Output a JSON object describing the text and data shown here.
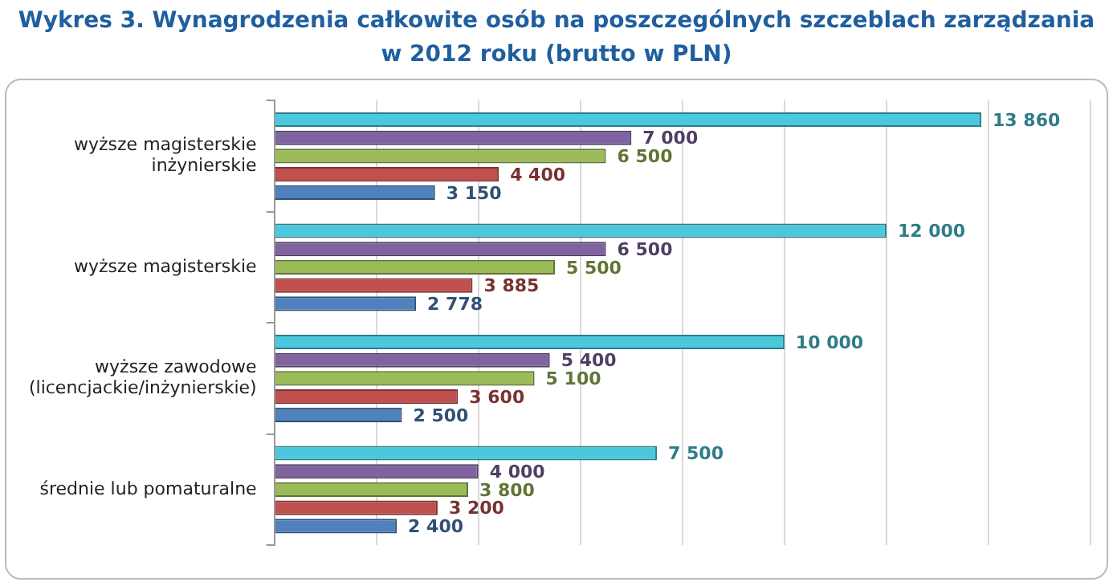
{
  "chart_data": {
    "type": "bar",
    "orientation": "horizontal",
    "title": "Wykres 3. Wynagrodzenia całkowite osób na poszczególnych szczeblach zarządzania\nw 2012 roku (brutto w PLN)",
    "categories": [
      "wyższe magisterskie inżynierskie",
      "wyższe magisterskie",
      "wyższe zawodowe (licencjackie/inżynierskie)",
      "średnie lub pomaturalne"
    ],
    "series": [
      {
        "color": "#4bc8dc",
        "values": [
          13860,
          12000,
          10000,
          7500
        ],
        "value_labels": [
          "13 860",
          "12 000",
          "10 000",
          "7 500"
        ]
      },
      {
        "color": "#8064a2",
        "values": [
          7000,
          6500,
          5400,
          4000
        ],
        "value_labels": [
          "7 000",
          "6 500",
          "5 400",
          "4 000"
        ]
      },
      {
        "color": "#9bbb59",
        "values": [
          6500,
          5500,
          5100,
          3800
        ],
        "value_labels": [
          "6 500",
          "5 500",
          "5 100",
          "3 800"
        ]
      },
      {
        "color": "#c0504d",
        "values": [
          4400,
          3885,
          3600,
          3200
        ],
        "value_labels": [
          "4 400",
          "3 885",
          "3 600",
          "3 200"
        ]
      },
      {
        "color": "#4f81bd",
        "values": [
          3150,
          2778,
          2500,
          2400
        ],
        "value_labels": [
          "3 150",
          "2 778",
          "2 500",
          "2 400"
        ]
      }
    ],
    "xlim": [
      0,
      16000
    ],
    "xticks": [
      {
        "value": 0,
        "label": null
      },
      {
        "value": 2000,
        "label": null
      },
      {
        "value": 4000,
        "label": null
      },
      {
        "value": 6000,
        "label": null
      },
      {
        "value": 8000,
        "label": null
      },
      {
        "value": 10000,
        "label": null
      },
      {
        "value": 12000,
        "label": null
      },
      {
        "value": 14000,
        "label": null
      },
      {
        "value": 16000,
        "label": null
      }
    ],
    "grid": "x",
    "legend": false
  }
}
